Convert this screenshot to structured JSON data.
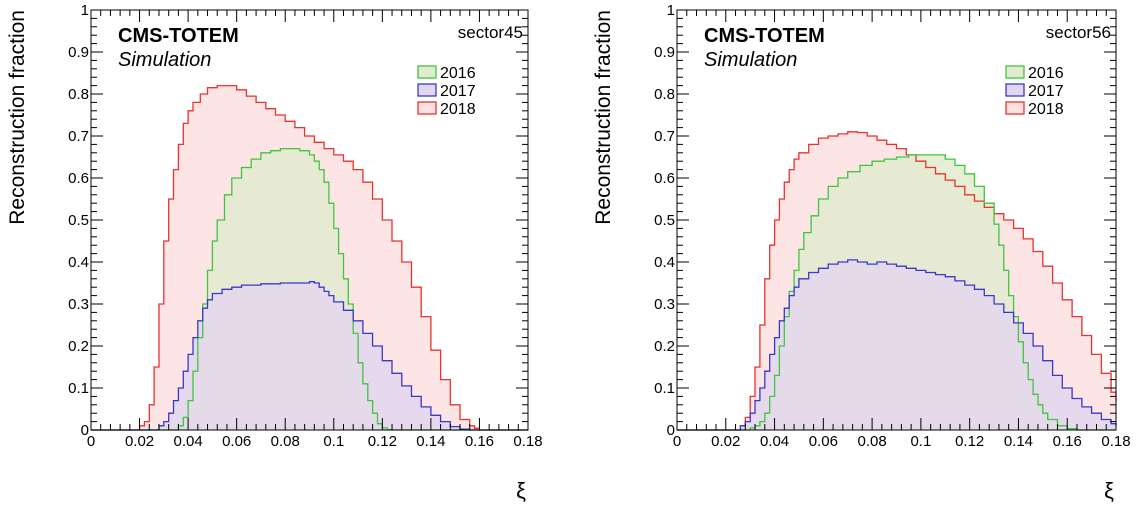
{
  "chart_data": [
    {
      "type": "step-histogram",
      "collaboration": "CMS-TOTEM",
      "subtitle": "Simulation",
      "sector": "sector45",
      "xlabel": "ξ",
      "ylabel": "Reconstruction fraction",
      "xlim": [
        0,
        0.18
      ],
      "ylim": [
        0,
        1
      ],
      "x_ticks": [
        0,
        0.02,
        0.04,
        0.06,
        0.08,
        0.1,
        0.12,
        0.14,
        0.16,
        0.18
      ],
      "x_tick_labels": [
        "0",
        "0.02",
        "0.04",
        "0.06",
        "0.08",
        "0.1",
        "0.12",
        "0.14",
        "0.16",
        "0.18"
      ],
      "y_ticks": [
        0,
        0.1,
        0.2,
        0.3,
        0.4,
        0.5,
        0.6,
        0.7,
        0.8,
        0.9,
        1
      ],
      "y_tick_labels": [
        "0",
        "0.1",
        "0.2",
        "0.3",
        "0.4",
        "0.5",
        "0.6",
        "0.7",
        "0.8",
        "0.9",
        "1"
      ],
      "legend_position": "top-right",
      "series": [
        {
          "name": "2018",
          "line_color": "#e8332f",
          "fill_color": "#fde0e1",
          "x": [
            0,
            0.02,
            0.022,
            0.024,
            0.026,
            0.028,
            0.03,
            0.032,
            0.034,
            0.036,
            0.038,
            0.04,
            0.042,
            0.045,
            0.048,
            0.052,
            0.056,
            0.06,
            0.064,
            0.068,
            0.072,
            0.076,
            0.08,
            0.084,
            0.088,
            0.092,
            0.096,
            0.1,
            0.104,
            0.108,
            0.112,
            0.116,
            0.12,
            0.124,
            0.128,
            0.132,
            0.136,
            0.14,
            0.144,
            0.148,
            0.152,
            0.156,
            0.158,
            0.16,
            0.18
          ],
          "y": [
            0,
            0.01,
            0.02,
            0.06,
            0.15,
            0.3,
            0.45,
            0.55,
            0.62,
            0.68,
            0.73,
            0.76,
            0.78,
            0.8,
            0.815,
            0.82,
            0.82,
            0.81,
            0.795,
            0.78,
            0.765,
            0.75,
            0.735,
            0.72,
            0.7,
            0.685,
            0.67,
            0.655,
            0.64,
            0.62,
            0.59,
            0.55,
            0.5,
            0.45,
            0.4,
            0.34,
            0.27,
            0.19,
            0.12,
            0.06,
            0.025,
            0.01,
            0.004,
            0,
            0
          ]
        },
        {
          "name": "2016",
          "line_color": "#3fc63f",
          "fill_color": "#e2ebcf",
          "x": [
            0,
            0.036,
            0.038,
            0.04,
            0.042,
            0.044,
            0.046,
            0.048,
            0.05,
            0.052,
            0.055,
            0.058,
            0.062,
            0.066,
            0.07,
            0.074,
            0.078,
            0.082,
            0.086,
            0.09,
            0.092,
            0.094,
            0.096,
            0.098,
            0.1,
            0.102,
            0.104,
            0.106,
            0.108,
            0.11,
            0.112,
            0.114,
            0.116,
            0.118,
            0.12,
            0.122,
            0.124,
            0.18
          ],
          "y": [
            0,
            0.01,
            0.03,
            0.07,
            0.14,
            0.22,
            0.3,
            0.38,
            0.45,
            0.5,
            0.56,
            0.6,
            0.625,
            0.645,
            0.66,
            0.665,
            0.67,
            0.67,
            0.665,
            0.655,
            0.64,
            0.62,
            0.59,
            0.54,
            0.48,
            0.42,
            0.36,
            0.3,
            0.23,
            0.16,
            0.11,
            0.07,
            0.04,
            0.015,
            0.005,
            0.001,
            0,
            0
          ]
        },
        {
          "name": "2017",
          "line_color": "#3939c9",
          "fill_color": "#e3d7ef",
          "x": [
            0,
            0.028,
            0.03,
            0.032,
            0.034,
            0.036,
            0.038,
            0.04,
            0.042,
            0.044,
            0.046,
            0.048,
            0.05,
            0.054,
            0.058,
            0.062,
            0.066,
            0.07,
            0.074,
            0.078,
            0.082,
            0.086,
            0.09,
            0.092,
            0.094,
            0.096,
            0.098,
            0.1,
            0.104,
            0.108,
            0.112,
            0.116,
            0.12,
            0.124,
            0.128,
            0.132,
            0.136,
            0.14,
            0.144,
            0.148,
            0.152,
            0.156,
            0.16,
            0.18
          ],
          "y": [
            0,
            0.01,
            0.02,
            0.04,
            0.07,
            0.1,
            0.14,
            0.18,
            0.22,
            0.26,
            0.29,
            0.31,
            0.325,
            0.335,
            0.34,
            0.345,
            0.345,
            0.348,
            0.348,
            0.35,
            0.35,
            0.35,
            0.353,
            0.35,
            0.34,
            0.33,
            0.32,
            0.305,
            0.285,
            0.26,
            0.23,
            0.2,
            0.165,
            0.135,
            0.105,
            0.08,
            0.055,
            0.035,
            0.02,
            0.008,
            0.002,
            0,
            0,
            0
          ]
        }
      ]
    },
    {
      "type": "step-histogram",
      "collaboration": "CMS-TOTEM",
      "subtitle": "Simulation",
      "sector": "sector56",
      "xlabel": "ξ",
      "ylabel": "Reconstruction fraction",
      "xlim": [
        0,
        0.18
      ],
      "ylim": [
        0,
        1
      ],
      "x_ticks": [
        0,
        0.02,
        0.04,
        0.06,
        0.08,
        0.1,
        0.12,
        0.14,
        0.16,
        0.18
      ],
      "x_tick_labels": [
        "0",
        "0.02",
        "0.04",
        "0.06",
        "0.08",
        "0.1",
        "0.12",
        "0.14",
        "0.16",
        "0.18"
      ],
      "y_ticks": [
        0,
        0.1,
        0.2,
        0.3,
        0.4,
        0.5,
        0.6,
        0.7,
        0.8,
        0.9,
        1
      ],
      "y_tick_labels": [
        "0",
        "0.1",
        "0.2",
        "0.3",
        "0.4",
        "0.5",
        "0.6",
        "0.7",
        "0.8",
        "0.9",
        "1"
      ],
      "legend_position": "top-right",
      "series": [
        {
          "name": "2018",
          "line_color": "#e8332f",
          "fill_color": "#fde0e1",
          "x": [
            0,
            0.026,
            0.028,
            0.03,
            0.032,
            0.034,
            0.036,
            0.038,
            0.04,
            0.042,
            0.044,
            0.046,
            0.048,
            0.05,
            0.054,
            0.058,
            0.062,
            0.066,
            0.07,
            0.074,
            0.078,
            0.082,
            0.086,
            0.09,
            0.094,
            0.098,
            0.102,
            0.106,
            0.11,
            0.114,
            0.118,
            0.122,
            0.126,
            0.13,
            0.134,
            0.138,
            0.142,
            0.146,
            0.15,
            0.154,
            0.158,
            0.162,
            0.166,
            0.17,
            0.174,
            0.178,
            0.18
          ],
          "y": [
            0,
            0.01,
            0.03,
            0.08,
            0.15,
            0.25,
            0.36,
            0.44,
            0.5,
            0.55,
            0.59,
            0.62,
            0.645,
            0.66,
            0.68,
            0.695,
            0.7,
            0.705,
            0.71,
            0.708,
            0.7,
            0.69,
            0.68,
            0.67,
            0.655,
            0.64,
            0.625,
            0.61,
            0.595,
            0.58,
            0.56,
            0.545,
            0.53,
            0.515,
            0.5,
            0.48,
            0.455,
            0.425,
            0.39,
            0.35,
            0.31,
            0.27,
            0.225,
            0.18,
            0.135,
            0.09,
            0.07
          ]
        },
        {
          "name": "2016",
          "line_color": "#3fc63f",
          "fill_color": "#e2ebcf",
          "x": [
            0,
            0.03,
            0.032,
            0.034,
            0.036,
            0.038,
            0.04,
            0.042,
            0.044,
            0.046,
            0.048,
            0.05,
            0.052,
            0.055,
            0.058,
            0.062,
            0.066,
            0.07,
            0.075,
            0.08,
            0.085,
            0.09,
            0.095,
            0.1,
            0.105,
            0.11,
            0.114,
            0.118,
            0.122,
            0.126,
            0.13,
            0.132,
            0.134,
            0.136,
            0.138,
            0.14,
            0.142,
            0.144,
            0.146,
            0.148,
            0.15,
            0.152,
            0.156,
            0.16,
            0.164,
            0.18
          ],
          "y": [
            0,
            0.005,
            0.01,
            0.02,
            0.04,
            0.08,
            0.13,
            0.2,
            0.27,
            0.33,
            0.38,
            0.43,
            0.47,
            0.51,
            0.55,
            0.58,
            0.6,
            0.615,
            0.63,
            0.64,
            0.645,
            0.65,
            0.655,
            0.655,
            0.655,
            0.645,
            0.63,
            0.61,
            0.58,
            0.54,
            0.49,
            0.44,
            0.38,
            0.32,
            0.27,
            0.21,
            0.16,
            0.12,
            0.085,
            0.06,
            0.04,
            0.025,
            0.01,
            0.003,
            0,
            0
          ]
        },
        {
          "name": "2017",
          "line_color": "#3939c9",
          "fill_color": "#e3d7ef",
          "x": [
            0,
            0.026,
            0.028,
            0.03,
            0.032,
            0.034,
            0.036,
            0.038,
            0.04,
            0.042,
            0.044,
            0.046,
            0.048,
            0.05,
            0.054,
            0.058,
            0.062,
            0.066,
            0.07,
            0.074,
            0.078,
            0.082,
            0.086,
            0.09,
            0.094,
            0.098,
            0.102,
            0.106,
            0.11,
            0.114,
            0.118,
            0.122,
            0.126,
            0.13,
            0.134,
            0.138,
            0.142,
            0.146,
            0.15,
            0.154,
            0.158,
            0.162,
            0.166,
            0.17,
            0.174,
            0.178,
            0.18
          ],
          "y": [
            0,
            0.01,
            0.02,
            0.04,
            0.07,
            0.1,
            0.14,
            0.18,
            0.22,
            0.26,
            0.29,
            0.32,
            0.34,
            0.36,
            0.375,
            0.385,
            0.395,
            0.4,
            0.405,
            0.4,
            0.395,
            0.4,
            0.395,
            0.39,
            0.385,
            0.38,
            0.375,
            0.37,
            0.365,
            0.355,
            0.345,
            0.335,
            0.32,
            0.3,
            0.28,
            0.255,
            0.23,
            0.2,
            0.165,
            0.13,
            0.1,
            0.075,
            0.055,
            0.04,
            0.025,
            0.015,
            0.01
          ]
        }
      ]
    }
  ]
}
